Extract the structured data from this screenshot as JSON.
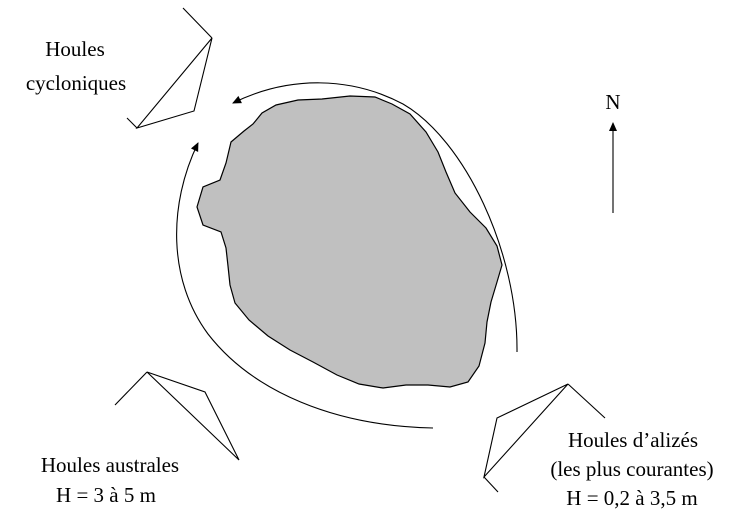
{
  "north": {
    "label": "N"
  },
  "swells": {
    "cyclonic": {
      "lines": [
        "Houles",
        "cycloniques"
      ]
    },
    "austral": {
      "lines": [
        "Houles australes",
        "H = 3 à 5  m"
      ]
    },
    "trade": {
      "lines": [
        "Houles d’alizés",
        "(les plus courantes)",
        "H = 0,2 à 3,5 m"
      ]
    }
  },
  "colors": {
    "island_fill": "#c0c0c0",
    "stroke": "#000000",
    "background": "#ffffff"
  }
}
